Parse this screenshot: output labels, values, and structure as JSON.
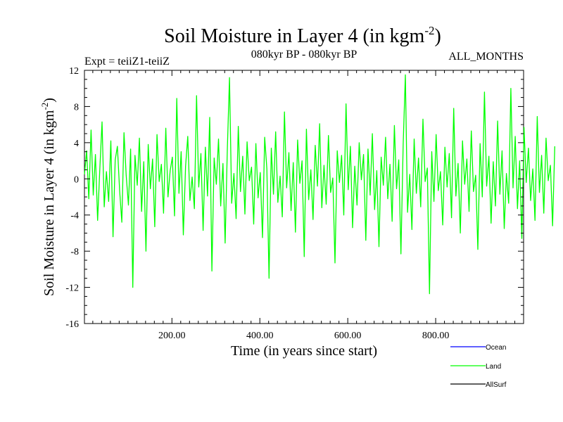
{
  "chart_data": {
    "type": "line",
    "title": "Soil Moisture in Layer 4 (in kgm",
    "title_sup": "-2",
    "title_close": ")",
    "subtitle_left": "Expt = teiiZ1-teiiZ",
    "subtitle_center": "080kyr BP - 080kyr BP",
    "subtitle_right": "ALL_MONTHS",
    "xlabel": "Time (in years since start)",
    "ylabel": "Soil Moisture in Layer 4 (in kgm",
    "ylabel_sup": "-2",
    "ylabel_close": ")",
    "xlim": [
      1,
      1000
    ],
    "ylim": [
      -16,
      12
    ],
    "x_ticks": [
      200,
      400,
      600,
      800
    ],
    "x_tick_labels": [
      "200.00",
      "400.00",
      "600.00",
      "800.00"
    ],
    "y_ticks": [
      -16,
      -12,
      -8,
      -4,
      0,
      4,
      8,
      12
    ],
    "y_tick_labels": [
      "-16",
      "-12",
      "-8",
      "-4",
      "0",
      "4",
      "8",
      "12"
    ],
    "series": [
      {
        "name": "Ocean",
        "color": "#0000ff",
        "values": []
      },
      {
        "name": "Land",
        "color": "#00ff00",
        "x_start": 1,
        "x_step": 5,
        "values": [
          0.5,
          3.1,
          -2.2,
          5.4,
          -1.8,
          2.7,
          -4.6,
          1.2,
          6.3,
          -3.1,
          0.8,
          -2.5,
          4.2,
          -6.4,
          2.1,
          3.6,
          -1.3,
          -4.8,
          5.1,
          0.4,
          -2.9,
          3.3,
          -12.0,
          2.6,
          -0.7,
          4.5,
          -3.6,
          1.9,
          -8.0,
          3.8,
          -1.1,
          2.2,
          -5.3,
          4.9,
          -0.3,
          1.6,
          -3.8,
          5.6,
          -2.0,
          0.9,
          2.4,
          -4.1,
          8.9,
          -1.6,
          3.0,
          -6.2,
          1.4,
          4.7,
          -2.4,
          0.2,
          -3.3,
          9.2,
          -0.9,
          2.8,
          -5.7,
          3.5,
          -1.9,
          6.8,
          -10.2,
          2.3,
          -0.6,
          4.4,
          -3.0,
          1.7,
          -7.1,
          3.2,
          11.2,
          -2.7,
          0.6,
          -4.4,
          5.8,
          -1.4,
          2.5,
          -3.9,
          4.1,
          -0.2,
          1.3,
          -5.0,
          3.9,
          -2.1,
          0.7,
          -6.5,
          4.6,
          1.1,
          -11.0,
          3.4,
          -1.7,
          5.2,
          -2.6,
          0.3,
          -4.2,
          7.4,
          -1.0,
          2.9,
          -3.5,
          1.8,
          -5.9,
          4.3,
          -0.5,
          2.0,
          -8.6,
          5.5,
          -2.3,
          1.0,
          -4.5,
          3.7,
          -0.8,
          6.1,
          -3.2,
          1.5,
          -2.8,
          4.8,
          -1.5,
          0.1,
          -9.3,
          3.1,
          -0.4,
          2.6,
          -4.0,
          8.3,
          -1.2,
          3.6,
          -5.4,
          1.4,
          -2.9,
          4.0,
          -0.1,
          2.7,
          -6.8,
          3.3,
          -1.8,
          5.0,
          -3.4,
          0.9,
          -7.5,
          2.4,
          -0.7,
          4.6,
          -2.2,
          1.6,
          -4.7,
          5.9,
          -1.1,
          2.1,
          -8.3,
          3.8,
          11.5,
          -3.7,
          0.5,
          -5.6,
          4.4,
          -1.6,
          2.3,
          -3.1,
          6.6,
          -0.3,
          1.2,
          -12.7,
          3.0,
          -2.5,
          4.9,
          -1.3,
          0.8,
          -5.1,
          3.5,
          -0.9,
          2.8,
          -4.3,
          7.8,
          -1.9,
          1.7,
          -6.0,
          4.2,
          -0.6,
          2.2,
          -3.6,
          5.3,
          -1.4,
          0.4,
          -7.8,
          3.9,
          -2.0,
          9.6,
          -0.8,
          2.5,
          -4.9,
          1.9,
          -3.0,
          6.4,
          -1.7,
          3.1,
          -5.5,
          0.6,
          -2.7,
          10.0,
          -1.0,
          4.7,
          -3.3,
          2.0,
          -6.6,
          5.7,
          -0.4,
          3.4,
          -2.4,
          1.1,
          -4.6,
          6.9,
          -1.5,
          2.6,
          -3.8,
          4.5,
          -0.2,
          1.5,
          -5.2,
          3.6
        ]
      },
      {
        "name": "AllSurf",
        "color": "#000000",
        "values": []
      }
    ],
    "grid": false,
    "legend": "bottom-right"
  }
}
